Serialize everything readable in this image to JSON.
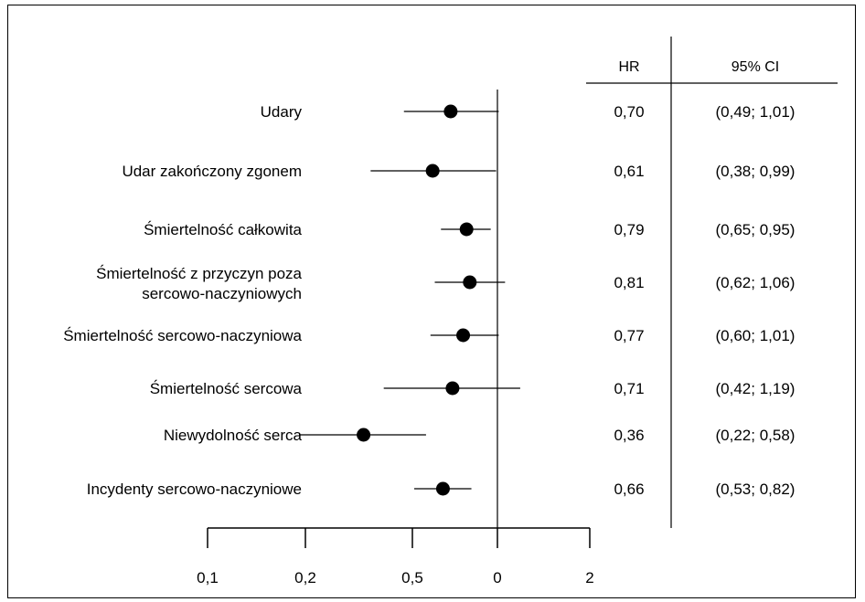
{
  "chart_data": {
    "type": "forest",
    "columns": {
      "hr_header": "HR",
      "ci_header": "95% CI"
    },
    "x_axis": {
      "scale": "log",
      "tick_labels": [
        "0,1",
        "0,2",
        "0,5",
        "0",
        "2"
      ]
    },
    "reference_line": 1,
    "rows": [
      {
        "label": [
          "Udary"
        ],
        "hr": 0.7,
        "ci_low": 0.49,
        "ci_high": 1.01,
        "hr_text": "0,70",
        "ci_text": "(0,49; 1,01)"
      },
      {
        "label": [
          "Udar zakończony zgonem"
        ],
        "hr": 0.61,
        "ci_low": 0.38,
        "ci_high": 0.99,
        "hr_text": "0,61",
        "ci_text": "(0,38; 0,99)"
      },
      {
        "label": [
          "Śmiertelność całkowita"
        ],
        "hr": 0.79,
        "ci_low": 0.65,
        "ci_high": 0.95,
        "hr_text": "0,79",
        "ci_text": "(0,65; 0,95)"
      },
      {
        "label": [
          "Śmiertelność z przyczyn poza",
          "sercowo-naczyniowych"
        ],
        "hr": 0.81,
        "ci_low": 0.62,
        "ci_high": 1.06,
        "hr_text": "0,81",
        "ci_text": "(0,62; 1,06)"
      },
      {
        "label": [
          "Śmiertelność sercowo-naczyniowa"
        ],
        "hr": 0.77,
        "ci_low": 0.6,
        "ci_high": 1.01,
        "hr_text": "0,77",
        "ci_text": "(0,60; 1,01)"
      },
      {
        "label": [
          "Śmiertelność sercowa"
        ],
        "hr": 0.71,
        "ci_low": 0.42,
        "ci_high": 1.19,
        "hr_text": "0,71",
        "ci_text": "(0,42; 1,19)"
      },
      {
        "label": [
          "Niewydolność serca"
        ],
        "hr": 0.36,
        "ci_low": 0.22,
        "ci_high": 0.58,
        "hr_text": "0,36",
        "ci_text": "(0,22; 0,58)"
      },
      {
        "label": [
          "Incydenty  sercowo-naczyniowe"
        ],
        "hr": 0.66,
        "ci_low": 0.53,
        "ci_high": 0.82,
        "hr_text": "0,66",
        "ci_text": "(0,53; 0,82)"
      }
    ]
  }
}
